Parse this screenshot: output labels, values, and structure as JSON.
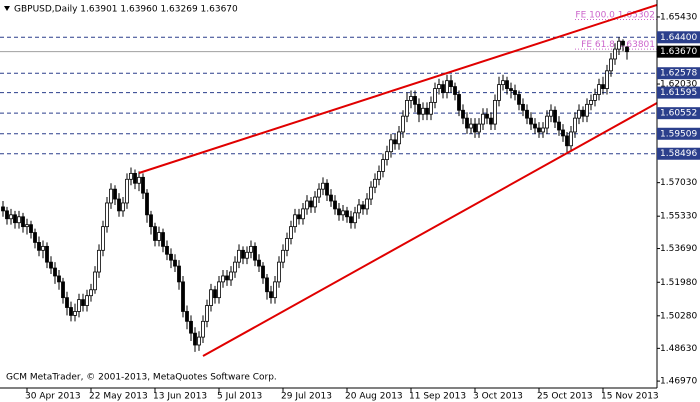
{
  "chart_data": {
    "type": "candlestick",
    "header": "GBPUSD,Daily  1.63901 1.63960 1.63269 1.63670",
    "footer": "GCM MetaTrader, © 2001-2013, MetaQuotes Software Corp.",
    "ylim": [
      1.4662,
      1.6629
    ],
    "yticks": [
      {
        "value": 1.6543,
        "label": "1.65430"
      },
      {
        "value": 1.6203,
        "label": "1.62030"
      },
      {
        "value": 1.5703,
        "label": "1.57030"
      },
      {
        "value": 1.5533,
        "label": "1.55330"
      },
      {
        "value": 1.5369,
        "label": "1.53690"
      },
      {
        "value": 1.5198,
        "label": "1.51980"
      },
      {
        "value": 1.5028,
        "label": "1.50280"
      },
      {
        "value": 1.4863,
        "label": "1.48630"
      },
      {
        "value": 1.4697,
        "label": "1.46970"
      }
    ],
    "xticks": [
      {
        "value": 6,
        "label": "30 Apr 2013"
      },
      {
        "value": 22,
        "label": "22 May 2013"
      },
      {
        "value": 38,
        "label": "13 Jun 2013"
      },
      {
        "value": 54,
        "label": "5 Jul 2013"
      },
      {
        "value": 70,
        "label": "29 Jul 2013"
      },
      {
        "value": 86,
        "label": "20 Aug 2013"
      },
      {
        "value": 102,
        "label": "11 Sep 2013"
      },
      {
        "value": 118,
        "label": "3 Oct 2013"
      },
      {
        "value": 134,
        "label": "25 Oct 2013"
      },
      {
        "value": 150,
        "label": "15 Nov 2013"
      }
    ],
    "levels": [
      {
        "value": 1.644,
        "label": "1.64400"
      },
      {
        "value": 1.62578,
        "label": "1.62578"
      },
      {
        "value": 1.61595,
        "label": "1.61595"
      },
      {
        "value": 1.60552,
        "label": "1.60552"
      },
      {
        "value": 1.59509,
        "label": "1.59509"
      },
      {
        "value": 1.58496,
        "label": "1.58496"
      }
    ],
    "level_color": "#2b3f8c",
    "bid_line": {
      "value": 1.6367,
      "label": "1.63670"
    },
    "fibo_levels": [
      {
        "label": "FE 100.0",
        "value": 1.65302
      },
      {
        "label": "FE 61.8",
        "value": 1.63801
      }
    ],
    "fibo_color": "#cc66cc",
    "trendlines": [
      {
        "x": [
          34,
          163.5
        ],
        "y": [
          1.5752,
          1.6604
        ]
      },
      {
        "x": [
          50,
          163.5
        ],
        "y": [
          1.4824,
          1.6107
        ]
      }
    ],
    "trend_color": "#e00000",
    "candles": [
      [
        1.558,
        1.561,
        1.553,
        1.556
      ],
      [
        1.556,
        1.558,
        1.549,
        1.552
      ],
      [
        1.552,
        1.557,
        1.549,
        1.554
      ],
      [
        1.554,
        1.556,
        1.547,
        1.55
      ],
      [
        1.55,
        1.556,
        1.547,
        1.553
      ],
      [
        1.553,
        1.555,
        1.545,
        1.548
      ],
      [
        1.548,
        1.552,
        1.544,
        1.549
      ],
      [
        1.549,
        1.551,
        1.542,
        1.545
      ],
      [
        1.545,
        1.547,
        1.537,
        1.54
      ],
      [
        1.54,
        1.543,
        1.533,
        1.536
      ],
      [
        1.536,
        1.541,
        1.532,
        1.538
      ],
      [
        1.538,
        1.54,
        1.527,
        1.53
      ],
      [
        1.53,
        1.533,
        1.524,
        1.527
      ],
      [
        1.527,
        1.53,
        1.519,
        1.523
      ],
      [
        1.523,
        1.526,
        1.516,
        1.52
      ],
      [
        1.52,
        1.522,
        1.509,
        1.512
      ],
      [
        1.512,
        1.515,
        1.503,
        1.507
      ],
      [
        1.507,
        1.51,
        1.5,
        1.503
      ],
      [
        1.503,
        1.509,
        1.5,
        1.505
      ],
      [
        1.505,
        1.514,
        1.502,
        1.511
      ],
      [
        1.511,
        1.514,
        1.505,
        1.508
      ],
      [
        1.508,
        1.516,
        1.505,
        1.513
      ],
      [
        1.513,
        1.519,
        1.51,
        1.516
      ],
      [
        1.516,
        1.528,
        1.514,
        1.525
      ],
      [
        1.525,
        1.539,
        1.522,
        1.536
      ],
      [
        1.536,
        1.551,
        1.533,
        1.548
      ],
      [
        1.548,
        1.563,
        1.545,
        1.56
      ],
      [
        1.56,
        1.57,
        1.557,
        1.567
      ],
      [
        1.567,
        1.569,
        1.559,
        1.562
      ],
      [
        1.562,
        1.565,
        1.553,
        1.556
      ],
      [
        1.556,
        1.563,
        1.553,
        1.56
      ],
      [
        1.56,
        1.575,
        1.557,
        1.572
      ],
      [
        1.572,
        1.578,
        1.569,
        1.575
      ],
      [
        1.575,
        1.577,
        1.567,
        1.57
      ],
      [
        1.57,
        1.576,
        1.566,
        1.573
      ],
      [
        1.573,
        1.575,
        1.562,
        1.565
      ],
      [
        1.565,
        1.567,
        1.55,
        1.554
      ],
      [
        1.554,
        1.556,
        1.544,
        1.548
      ],
      [
        1.548,
        1.55,
        1.538,
        1.541
      ],
      [
        1.541,
        1.548,
        1.538,
        1.545
      ],
      [
        1.545,
        1.547,
        1.535,
        1.538
      ],
      [
        1.538,
        1.541,
        1.531,
        1.534
      ],
      [
        1.534,
        1.537,
        1.527,
        1.531
      ],
      [
        1.531,
        1.534,
        1.525,
        1.528
      ],
      [
        1.528,
        1.531,
        1.516,
        1.52
      ],
      [
        1.52,
        1.523,
        1.502,
        1.505
      ],
      [
        1.505,
        1.508,
        1.496,
        1.5
      ],
      [
        1.5,
        1.503,
        1.49,
        1.494
      ],
      [
        1.494,
        1.497,
        1.4845,
        1.488
      ],
      [
        1.488,
        1.495,
        1.485,
        1.492
      ],
      [
        1.492,
        1.503,
        1.489,
        1.5
      ],
      [
        1.5,
        1.511,
        1.497,
        1.508
      ],
      [
        1.508,
        1.519,
        1.505,
        1.516
      ],
      [
        1.516,
        1.518,
        1.509,
        1.512
      ],
      [
        1.512,
        1.523,
        1.509,
        1.52
      ],
      [
        1.52,
        1.526,
        1.517,
        1.523
      ],
      [
        1.523,
        1.526,
        1.518,
        1.521
      ],
      [
        1.521,
        1.528,
        1.518,
        1.525
      ],
      [
        1.525,
        1.533,
        1.522,
        1.53
      ],
      [
        1.53,
        1.539,
        1.527,
        1.536
      ],
      [
        1.536,
        1.538,
        1.529,
        1.532
      ],
      [
        1.532,
        1.538,
        1.529,
        1.535
      ],
      [
        1.535,
        1.541,
        1.532,
        1.538
      ],
      [
        1.538,
        1.54,
        1.528,
        1.531
      ],
      [
        1.531,
        1.534,
        1.525,
        1.528
      ],
      [
        1.528,
        1.53,
        1.519,
        1.522
      ],
      [
        1.522,
        1.524,
        1.511,
        1.515
      ],
      [
        1.515,
        1.518,
        1.509,
        1.512
      ],
      [
        1.512,
        1.523,
        1.509,
        1.52
      ],
      [
        1.52,
        1.533,
        1.517,
        1.53
      ],
      [
        1.53,
        1.539,
        1.527,
        1.536
      ],
      [
        1.536,
        1.545,
        1.533,
        1.542
      ],
      [
        1.542,
        1.551,
        1.539,
        1.548
      ],
      [
        1.548,
        1.557,
        1.545,
        1.554
      ],
      [
        1.554,
        1.557,
        1.549,
        1.552
      ],
      [
        1.552,
        1.56,
        1.549,
        1.557
      ],
      [
        1.557,
        1.564,
        1.554,
        1.561
      ],
      [
        1.561,
        1.563,
        1.555,
        1.558
      ],
      [
        1.558,
        1.566,
        1.555,
        1.563
      ],
      [
        1.563,
        1.57,
        1.56,
        1.567
      ],
      [
        1.567,
        1.573,
        1.564,
        1.57
      ],
      [
        1.57,
        1.572,
        1.561,
        1.564
      ],
      [
        1.564,
        1.567,
        1.558,
        1.561
      ],
      [
        1.561,
        1.564,
        1.554,
        1.557
      ],
      [
        1.557,
        1.56,
        1.551,
        1.554
      ],
      [
        1.554,
        1.559,
        1.551,
        1.556
      ],
      [
        1.556,
        1.558,
        1.55,
        1.553
      ],
      [
        1.553,
        1.556,
        1.547,
        1.55
      ],
      [
        1.55,
        1.558,
        1.547,
        1.555
      ],
      [
        1.555,
        1.562,
        1.552,
        1.559
      ],
      [
        1.559,
        1.561,
        1.554,
        1.557
      ],
      [
        1.557,
        1.565,
        1.554,
        1.562
      ],
      [
        1.562,
        1.571,
        1.559,
        1.568
      ],
      [
        1.568,
        1.575,
        1.565,
        1.572
      ],
      [
        1.572,
        1.579,
        1.569,
        1.576
      ],
      [
        1.576,
        1.585,
        1.573,
        1.582
      ],
      [
        1.582,
        1.589,
        1.579,
        1.586
      ],
      [
        1.586,
        1.595,
        1.583,
        1.592
      ],
      [
        1.592,
        1.595,
        1.587,
        1.59
      ],
      [
        1.59,
        1.599,
        1.587,
        1.596
      ],
      [
        1.596,
        1.607,
        1.593,
        1.604
      ],
      [
        1.604,
        1.616,
        1.601,
        1.612
      ],
      [
        1.612,
        1.617,
        1.608,
        1.614
      ],
      [
        1.614,
        1.617,
        1.606,
        1.61
      ],
      [
        1.61,
        1.613,
        1.601,
        1.605
      ],
      [
        1.605,
        1.611,
        1.602,
        1.608
      ],
      [
        1.608,
        1.611,
        1.602,
        1.605
      ],
      [
        1.605,
        1.614,
        1.602,
        1.611
      ],
      [
        1.611,
        1.621,
        1.608,
        1.618
      ],
      [
        1.618,
        1.623,
        1.615,
        1.62
      ],
      [
        1.62,
        1.622,
        1.613,
        1.616
      ],
      [
        1.616,
        1.625,
        1.613,
        1.622
      ],
      [
        1.622,
        1.625,
        1.616,
        1.619
      ],
      [
        1.619,
        1.621,
        1.612,
        1.615
      ],
      [
        1.615,
        1.617,
        1.604,
        1.607
      ],
      [
        1.607,
        1.61,
        1.6,
        1.603
      ],
      [
        1.603,
        1.606,
        1.595,
        1.598
      ],
      [
        1.598,
        1.603,
        1.595,
        1.6
      ],
      [
        1.6,
        1.603,
        1.593,
        1.596
      ],
      [
        1.596,
        1.603,
        1.593,
        1.6
      ],
      [
        1.6,
        1.608,
        1.597,
        1.605
      ],
      [
        1.605,
        1.608,
        1.6,
        1.603
      ],
      [
        1.603,
        1.606,
        1.597,
        1.6
      ],
      [
        1.6,
        1.615,
        1.597,
        1.612
      ],
      [
        1.612,
        1.624,
        1.609,
        1.62
      ],
      [
        1.62,
        1.625,
        1.617,
        1.622
      ],
      [
        1.622,
        1.624,
        1.615,
        1.618
      ],
      [
        1.618,
        1.621,
        1.613,
        1.617
      ],
      [
        1.617,
        1.62,
        1.612,
        1.615
      ],
      [
        1.615,
        1.617,
        1.607,
        1.61
      ],
      [
        1.61,
        1.613,
        1.604,
        1.607
      ],
      [
        1.607,
        1.61,
        1.6,
        1.603
      ],
      [
        1.603,
        1.606,
        1.597,
        1.6
      ],
      [
        1.6,
        1.603,
        1.595,
        1.598
      ],
      [
        1.598,
        1.601,
        1.593,
        1.596
      ],
      [
        1.596,
        1.601,
        1.593,
        1.598
      ],
      [
        1.598,
        1.607,
        1.595,
        1.604
      ],
      [
        1.604,
        1.61,
        1.601,
        1.607
      ],
      [
        1.607,
        1.609,
        1.598,
        1.601
      ],
      [
        1.601,
        1.604,
        1.594,
        1.597
      ],
      [
        1.597,
        1.6,
        1.591,
        1.594
      ],
      [
        1.594,
        1.596,
        1.5855,
        1.589
      ],
      [
        1.589,
        1.599,
        1.586,
        1.596
      ],
      [
        1.596,
        1.606,
        1.593,
        1.603
      ],
      [
        1.603,
        1.61,
        1.6,
        1.607
      ],
      [
        1.607,
        1.609,
        1.601,
        1.604
      ],
      [
        1.604,
        1.613,
        1.601,
        1.61
      ],
      [
        1.61,
        1.615,
        1.607,
        1.612
      ],
      [
        1.612,
        1.618,
        1.609,
        1.615
      ],
      [
        1.615,
        1.623,
        1.612,
        1.62
      ],
      [
        1.62,
        1.624,
        1.615,
        1.618
      ],
      [
        1.618,
        1.63,
        1.615,
        1.627
      ],
      [
        1.627,
        1.636,
        1.624,
        1.633
      ],
      [
        1.633,
        1.641,
        1.63,
        1.638
      ],
      [
        1.638,
        1.644,
        1.635,
        1.642
      ],
      [
        1.642,
        1.643,
        1.637,
        1.64
      ],
      [
        1.63901,
        1.6396,
        1.63269,
        1.6367
      ]
    ]
  }
}
